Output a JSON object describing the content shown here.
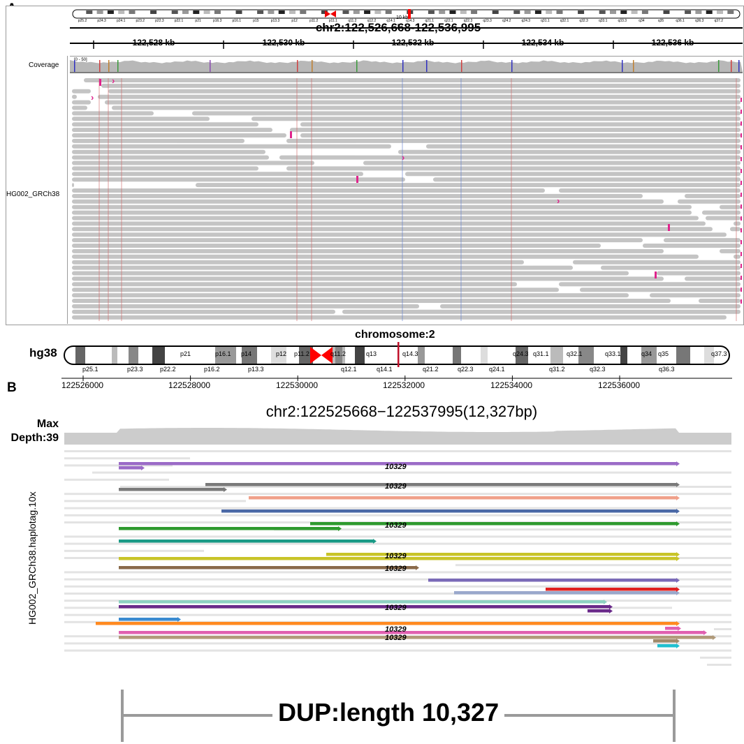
{
  "panel_a": {
    "label": "A",
    "locus": "chr2:122,526,668-122,536,995",
    "scale_text": "10 kb",
    "coverage_label": "Coverage",
    "coverage_range": "[0 - 50]",
    "track_name": "HG002_GRCh38",
    "ruler_labels": [
      "122,528 kb",
      "122,530 kb",
      "122,532 kb",
      "122,534 kb",
      "122,536 kb"
    ],
    "ideogram_bands": [
      "p25.2",
      "p24.3",
      "p24.1",
      "p23.2",
      "p22.3",
      "p22.1",
      "p21",
      "p16.3",
      "p16.1",
      "p15",
      "p13.3",
      "p12",
      "p11.2",
      "p11.1",
      "q11.2",
      "q12.2",
      "q14.1",
      "q14.3",
      "q21.1",
      "q22.1",
      "q22.3",
      "q23.3",
      "q24.2",
      "q24.3",
      "q31.1",
      "q32.1",
      "q32.3",
      "q33.1",
      "q33.3",
      "q34",
      "q35",
      "q36.1",
      "q36.3",
      "q37.2"
    ]
  },
  "panel_b": {
    "label": "B",
    "chromosome_title": "chromosome:2",
    "genome": "hg38",
    "bands_top": [
      "p21",
      "p16.1",
      "p14",
      "p12",
      "p11.2",
      "q11.2",
      "q13",
      "q14.3",
      "q24.3",
      "q31.1",
      "q32.1",
      "q33.1",
      "q34",
      "q35",
      "q37.3"
    ],
    "bands_bottom": [
      "p25.1",
      "p23.3",
      "p22.2",
      "p16.2",
      "p13.3",
      "q12.1",
      "q14.1",
      "q21.2",
      "q22.3",
      "q24.1",
      "q31.2",
      "q32.3",
      "q36.3"
    ],
    "positions": [
      "122526000",
      "122528000",
      "122530000",
      "122532000",
      "122534000",
      "122536000"
    ],
    "region": "chr2:122525668−122537995(12,327bp)",
    "max_depth_line1": "Max",
    "max_depth_line2": "Depth:39",
    "track_name": "HG002_GRCh38.haplotag.10x",
    "read_label": "10329",
    "dup_label": "DUP:length 10,327"
  },
  "colors": {
    "read_gray": "#c4c4c4",
    "light_read": "#e3e3e3",
    "insertion_magenta": "#e0248c",
    "centromere_red": "#ff0000"
  }
}
